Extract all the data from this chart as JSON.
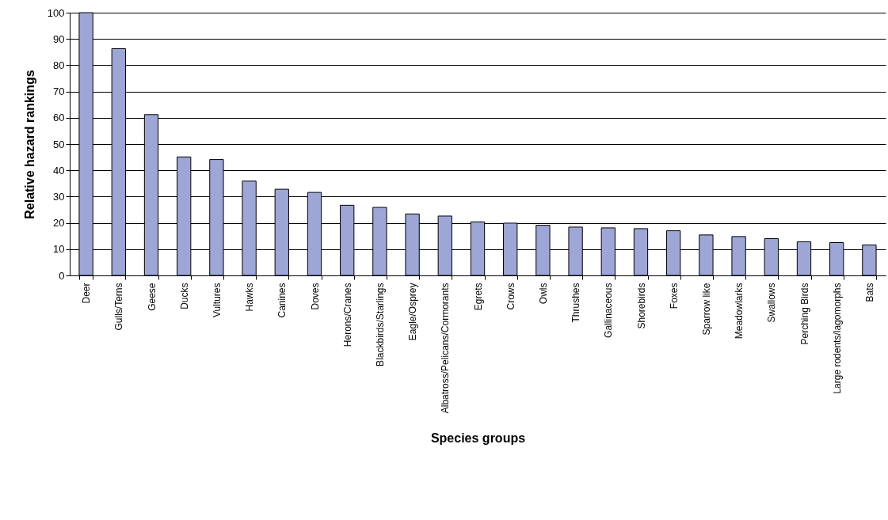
{
  "chart_data": {
    "type": "bar",
    "xlabel": "Species groups",
    "ylabel": "Relative hazard rankings",
    "categories": [
      "Deer",
      "Gulls/Terns",
      "Geese",
      "Ducks",
      "Vultures",
      "Hawks",
      "Canines",
      "Doves",
      "Herons/Cranes",
      "Blackbirds/Starlings",
      "Eagle/Osprey",
      "Albatross/Pelicans/Cormorants",
      "Egrets",
      "Crows",
      "Owls",
      "Thrushes",
      "Gallinaceous",
      "Shorebirds",
      "Foxes",
      "Sparrow like",
      "Meadowlarks",
      "Swallows",
      "Perching Birds",
      "Large rodents/lagomorphs",
      "Bats"
    ],
    "values": [
      100,
      86.3,
      61.2,
      45.1,
      44.1,
      35.9,
      32.8,
      31.6,
      26.7,
      25.9,
      23.4,
      22.6,
      20.4,
      19.9,
      19.1,
      18.4,
      18.1,
      17.8,
      17.0,
      15.4,
      14.8,
      14.0,
      12.8,
      12.5,
      11.6
    ],
    "color": "#9ea6d6",
    "ylim": [
      0,
      100
    ],
    "yticks": [
      0,
      10,
      20,
      30,
      40,
      50,
      60,
      70,
      80,
      90,
      100
    ],
    "grid": "y"
  }
}
